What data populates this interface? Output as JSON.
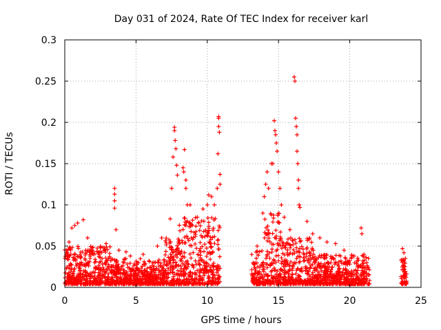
{
  "chart_data": {
    "type": "scatter",
    "title": "Day 031 of 2024, Rate Of TEC Index for receiver karl",
    "xlabel": "GPS time / hours",
    "ylabel": "ROTI / TECUs",
    "xlim": [
      0,
      25
    ],
    "ylim": [
      0,
      0.3
    ],
    "x_ticks": [
      "0",
      "5",
      "10",
      "15",
      "20",
      "25"
    ],
    "y_ticks": [
      "0",
      "0.05",
      "0.1",
      "0.15",
      "0.2",
      "0.25",
      "0.3"
    ],
    "grid": true,
    "marker": "plus",
    "series": [
      {
        "color": "#ff0000",
        "points": [
          [
            0.1,
            0.045
          ],
          [
            0.3,
            0.055
          ],
          [
            0.5,
            0.072
          ],
          [
            0.7,
            0.075
          ],
          [
            0.9,
            0.078
          ],
          [
            1.3,
            0.082
          ],
          [
            1.6,
            0.06
          ],
          [
            2.4,
            0.042
          ],
          [
            2.9,
            0.053
          ],
          [
            3.5,
            0.12
          ],
          [
            3.5,
            0.113
          ],
          [
            3.5,
            0.105
          ],
          [
            3.5,
            0.096
          ],
          [
            3.6,
            0.07
          ],
          [
            3.8,
            0.045
          ],
          [
            4.3,
            0.043
          ],
          [
            4.6,
            0.038
          ],
          [
            5.5,
            0.04
          ],
          [
            6.5,
            0.05
          ],
          [
            6.8,
            0.06
          ],
          [
            7.4,
            0.083
          ],
          [
            7.5,
            0.12
          ],
          [
            7.6,
            0.158
          ],
          [
            7.7,
            0.194
          ],
          [
            7.7,
            0.19
          ],
          [
            7.75,
            0.178
          ],
          [
            7.8,
            0.168
          ],
          [
            7.85,
            0.148
          ],
          [
            7.9,
            0.136
          ],
          [
            8.3,
            0.145
          ],
          [
            8.35,
            0.14
          ],
          [
            8.4,
            0.167
          ],
          [
            8.5,
            0.13
          ],
          [
            8.5,
            0.12
          ],
          [
            8.6,
            0.1
          ],
          [
            8.8,
            0.1
          ],
          [
            9.3,
            0.085
          ],
          [
            9.7,
            0.095
          ],
          [
            10.0,
            0.1
          ],
          [
            10.1,
            0.112
          ],
          [
            10.3,
            0.11
          ],
          [
            10.5,
            0.1
          ],
          [
            10.7,
            0.12
          ],
          [
            10.75,
            0.162
          ],
          [
            10.8,
            0.207
          ],
          [
            10.8,
            0.205
          ],
          [
            10.8,
            0.195
          ],
          [
            10.85,
            0.188
          ],
          [
            10.9,
            0.137
          ],
          [
            10.9,
            0.125
          ],
          [
            13.5,
            0.05
          ],
          [
            13.9,
            0.09
          ],
          [
            14.0,
            0.11
          ],
          [
            14.1,
            0.125
          ],
          [
            14.2,
            0.14
          ],
          [
            14.3,
            0.12
          ],
          [
            14.5,
            0.15
          ],
          [
            14.6,
            0.15
          ],
          [
            14.7,
            0.202
          ],
          [
            14.75,
            0.19
          ],
          [
            14.8,
            0.185
          ],
          [
            14.85,
            0.175
          ],
          [
            14.9,
            0.165
          ],
          [
            15.0,
            0.14
          ],
          [
            15.1,
            0.12
          ],
          [
            15.2,
            0.1
          ],
          [
            15.4,
            0.085
          ],
          [
            15.8,
            0.07
          ],
          [
            16.1,
            0.255
          ],
          [
            16.15,
            0.25
          ],
          [
            16.2,
            0.205
          ],
          [
            16.25,
            0.195
          ],
          [
            16.3,
            0.185
          ],
          [
            16.3,
            0.165
          ],
          [
            16.35,
            0.15
          ],
          [
            16.4,
            0.13
          ],
          [
            16.4,
            0.12
          ],
          [
            16.45,
            0.1
          ],
          [
            16.5,
            0.097
          ],
          [
            17.0,
            0.08
          ],
          [
            17.4,
            0.065
          ],
          [
            17.9,
            0.06
          ],
          [
            18.4,
            0.055
          ],
          [
            19.0,
            0.053
          ],
          [
            19.6,
            0.045
          ],
          [
            20.3,
            0.038
          ],
          [
            20.8,
            0.072
          ],
          [
            20.85,
            0.065
          ],
          [
            21.0,
            0.04
          ],
          [
            23.7,
            0.047
          ],
          [
            23.8,
            0.042
          ],
          [
            23.9,
            0.035
          ]
        ],
        "bands": [
          {
            "x": [
              0.0,
              3.2
            ],
            "ymax": 0.05
          },
          {
            "x": [
              3.2,
              7.0
            ],
            "ymax": 0.035
          },
          {
            "x": [
              7.0,
              8.0
            ],
            "ymax": 0.06
          },
          {
            "x": [
              8.0,
              10.9
            ],
            "ymax": 0.085
          },
          {
            "x": [
              13.1,
              14.0
            ],
            "ymax": 0.045
          },
          {
            "x": [
              14.0,
              15.3
            ],
            "ymax": 0.09
          },
          {
            "x": [
              15.3,
              17.5
            ],
            "ymax": 0.06
          },
          {
            "x": [
              17.5,
              21.4
            ],
            "ymax": 0.04
          },
          {
            "x": [
              23.6,
              24.0
            ],
            "ymax": 0.035
          }
        ]
      }
    ]
  }
}
